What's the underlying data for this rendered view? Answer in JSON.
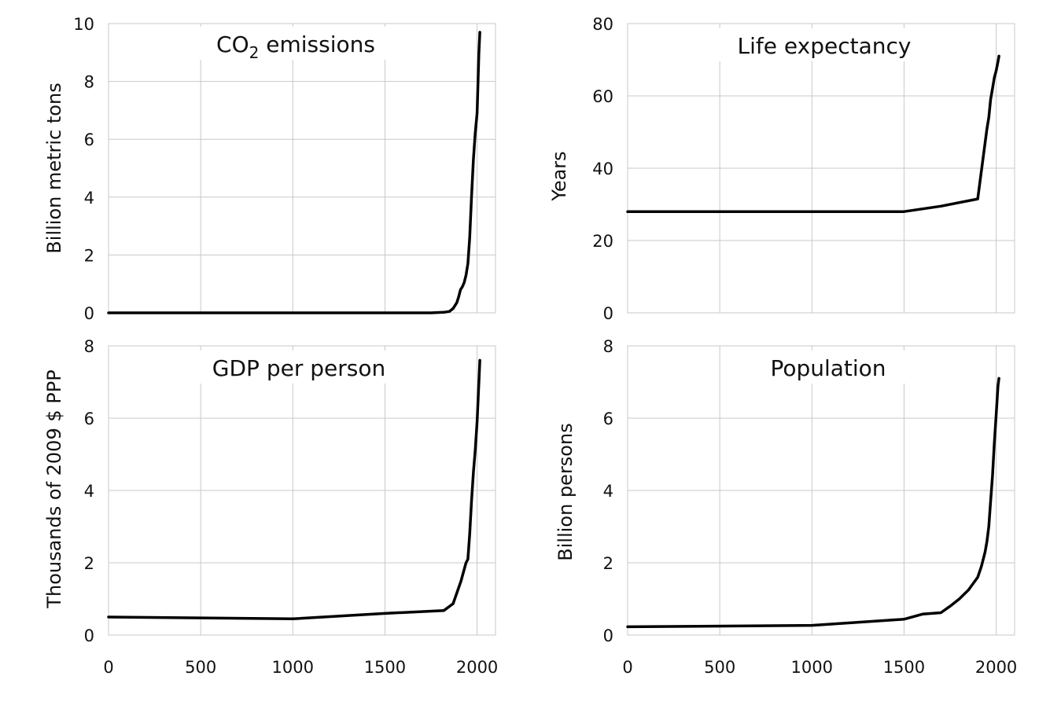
{
  "chart_data": [
    {
      "type": "line",
      "title": "CO₂ emissions",
      "title_main": "CO",
      "title_sub": "2",
      "title_rest": " emissions",
      "xlabel": "",
      "ylabel": "Billion metric tons",
      "xlim": [
        0,
        2100
      ],
      "ylim": [
        0,
        10
      ],
      "xticks": [
        "0",
        "500",
        "1000",
        "1500",
        "2000"
      ],
      "yticks": [
        "0",
        "2",
        "4",
        "6",
        "8",
        "10"
      ],
      "grid": true,
      "series": [
        {
          "x": [
            0,
            1750,
            1820,
            1850,
            1870,
            1890,
            1900,
            1910,
            1920,
            1930,
            1940,
            1950,
            1960,
            1970,
            1980,
            1990,
            2000,
            2010,
            2015
          ],
          "y": [
            0,
            0,
            0.02,
            0.05,
            0.15,
            0.35,
            0.55,
            0.8,
            0.9,
            1.05,
            1.3,
            1.7,
            2.6,
            4.0,
            5.3,
            6.2,
            6.9,
            9.0,
            9.7
          ]
        }
      ]
    },
    {
      "type": "line",
      "title": "Life expectancy",
      "xlabel": "",
      "ylabel": "Years",
      "xlim": [
        0,
        2100
      ],
      "ylim": [
        0,
        80
      ],
      "xticks": [
        "0",
        "500",
        "1000",
        "1500",
        "2000"
      ],
      "yticks": [
        "0",
        "20",
        "40",
        "60",
        "80"
      ],
      "grid": true,
      "series": [
        {
          "x": [
            0,
            1500,
            1700,
            1800,
            1900,
            1950,
            1960,
            1970,
            1980,
            1990,
            2000,
            2010,
            2015
          ],
          "y": [
            28,
            28,
            29.5,
            30.5,
            31.5,
            51,
            54,
            59,
            62,
            65,
            67,
            69.5,
            71
          ]
        }
      ]
    },
    {
      "type": "line",
      "title": "GDP per person",
      "xlabel": "",
      "ylabel": "Thousands of 2009 $ PPP",
      "xlim": [
        0,
        2100
      ],
      "ylim": [
        0,
        8
      ],
      "xticks": [
        "0",
        "500",
        "1000",
        "1500",
        "2000"
      ],
      "yticks": [
        "0",
        "2",
        "4",
        "6",
        "8"
      ],
      "grid": true,
      "series": [
        {
          "x": [
            0,
            1000,
            1500,
            1820,
            1870,
            1913,
            1940,
            1950,
            1960,
            1970,
            1980,
            1990,
            2000,
            2010,
            2015
          ],
          "y": [
            0.5,
            0.45,
            0.6,
            0.68,
            0.87,
            1.5,
            2.0,
            2.1,
            2.8,
            3.7,
            4.5,
            5.1,
            5.9,
            7.0,
            7.6
          ]
        }
      ]
    },
    {
      "type": "line",
      "title": "Population",
      "xlabel": "",
      "ylabel": "Billion persons",
      "xlim": [
        0,
        2100
      ],
      "ylim": [
        0,
        8
      ],
      "xticks": [
        "0",
        "500",
        "1000",
        "1500",
        "2000"
      ],
      "yticks": [
        "0",
        "2",
        "4",
        "6",
        "8"
      ],
      "grid": true,
      "series": [
        {
          "x": [
            0,
            1000,
            1500,
            1600,
            1700,
            1750,
            1800,
            1850,
            1900,
            1920,
            1940,
            1950,
            1960,
            1970,
            1980,
            1990,
            2000,
            2010,
            2015
          ],
          "y": [
            0.23,
            0.27,
            0.44,
            0.58,
            0.62,
            0.8,
            1.0,
            1.25,
            1.6,
            1.9,
            2.3,
            2.6,
            3.0,
            3.7,
            4.4,
            5.3,
            6.1,
            6.9,
            7.1
          ]
        }
      ]
    }
  ]
}
